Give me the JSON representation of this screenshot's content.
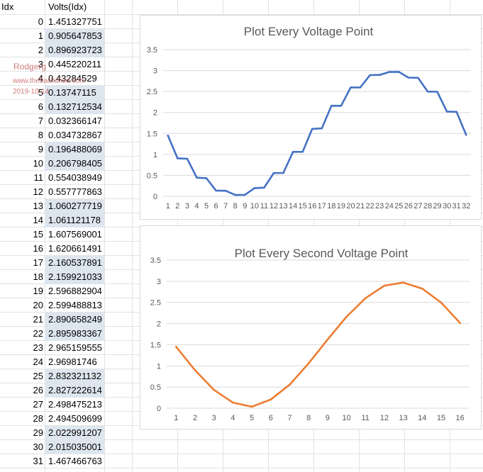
{
  "sheet": {
    "headers": [
      "Idx",
      "Volts(Idx)"
    ],
    "rows": [
      {
        "idx": "0",
        "val": "1.451327751",
        "sel": false
      },
      {
        "idx": "1",
        "val": "0.905647853",
        "sel": true
      },
      {
        "idx": "2",
        "val": "0.896923723",
        "sel": true
      },
      {
        "idx": "3",
        "val": "0.445220211",
        "sel": false
      },
      {
        "idx": "4",
        "val": "0.43284529",
        "sel": false
      },
      {
        "idx": "5",
        "val": "0.13747115",
        "sel": true
      },
      {
        "idx": "6",
        "val": "0.132712534",
        "sel": true
      },
      {
        "idx": "7",
        "val": "0.032366147",
        "sel": false
      },
      {
        "idx": "8",
        "val": "0.034732867",
        "sel": false
      },
      {
        "idx": "9",
        "val": "0.196488069",
        "sel": true
      },
      {
        "idx": "10",
        "val": "0.206798405",
        "sel": true
      },
      {
        "idx": "11",
        "val": "0.554038949",
        "sel": false
      },
      {
        "idx": "12",
        "val": "0.557777863",
        "sel": false
      },
      {
        "idx": "13",
        "val": "1.060277719",
        "sel": true
      },
      {
        "idx": "14",
        "val": "1.061121178",
        "sel": true
      },
      {
        "idx": "15",
        "val": "1.607569001",
        "sel": false
      },
      {
        "idx": "16",
        "val": "1.620661491",
        "sel": false
      },
      {
        "idx": "17",
        "val": "2.160537891",
        "sel": true
      },
      {
        "idx": "18",
        "val": "2.159921033",
        "sel": true
      },
      {
        "idx": "19",
        "val": "2.596882904",
        "sel": false
      },
      {
        "idx": "20",
        "val": "2.599488813",
        "sel": false
      },
      {
        "idx": "21",
        "val": "2.890658249",
        "sel": true
      },
      {
        "idx": "22",
        "val": "2.895983367",
        "sel": true
      },
      {
        "idx": "23",
        "val": "2.965159555",
        "sel": false
      },
      {
        "idx": "24",
        "val": "2.96981746",
        "sel": false
      },
      {
        "idx": "25",
        "val": "2.832321132",
        "sel": true
      },
      {
        "idx": "26",
        "val": "2.827222614",
        "sel": true
      },
      {
        "idx": "27",
        "val": "2.498475213",
        "sel": false
      },
      {
        "idx": "28",
        "val": "2.494509699",
        "sel": false
      },
      {
        "idx": "29",
        "val": "2.022991207",
        "sel": true
      },
      {
        "idx": "30",
        "val": "2.015035001",
        "sel": true
      },
      {
        "idx": "31",
        "val": "1.467466763",
        "sel": false
      }
    ]
  },
  "watermark": {
    "name": "Rodgerg",
    "site": "www.thebackshed.com",
    "date": "2019-10-14"
  },
  "colors": {
    "series1": "#4472c4",
    "series2": "#ed7d31",
    "gridline": "#d9d9d9",
    "selection": "#dde6ef"
  },
  "chart_data": [
    {
      "type": "line",
      "title": "Plot Every Voltage Point",
      "x": [
        1,
        2,
        3,
        4,
        5,
        6,
        7,
        8,
        9,
        10,
        11,
        12,
        13,
        14,
        15,
        16,
        17,
        18,
        19,
        20,
        21,
        22,
        23,
        24,
        25,
        26,
        27,
        28,
        29,
        30,
        31,
        32
      ],
      "series": [
        {
          "values": [
            1.451327751,
            0.905647853,
            0.896923723,
            0.445220211,
            0.43284529,
            0.13747115,
            0.132712534,
            0.032366147,
            0.034732867,
            0.196488069,
            0.206798405,
            0.554038949,
            0.557777863,
            1.060277719,
            1.061121178,
            1.607569001,
            1.620661491,
            2.160537891,
            2.159921033,
            2.596882904,
            2.599488813,
            2.890658249,
            2.895983367,
            2.965159555,
            2.96981746,
            2.832321132,
            2.827222614,
            2.498475213,
            2.494509699,
            2.022991207,
            2.015035001,
            1.467466763
          ]
        }
      ],
      "yticks": [
        "0",
        "0.5",
        "1",
        "1.5",
        "2",
        "2.5",
        "3",
        "3.5"
      ],
      "ylim": [
        0,
        3.5
      ],
      "grid": true,
      "legend": "none"
    },
    {
      "type": "line",
      "title": "Plot Every Second Voltage Point",
      "x": [
        1,
        2,
        3,
        4,
        5,
        6,
        7,
        8,
        9,
        10,
        11,
        12,
        13,
        14,
        15,
        16
      ],
      "series": [
        {
          "values": [
            1.451327751,
            0.896923723,
            0.43284529,
            0.132712534,
            0.034732867,
            0.206798405,
            0.557777863,
            1.061121178,
            1.620661491,
            2.159921033,
            2.599488813,
            2.895983367,
            2.96981746,
            2.827222614,
            2.494509699,
            2.015035001
          ]
        }
      ],
      "yticks": [
        "0",
        "0.5",
        "1",
        "1.5",
        "2",
        "2.5",
        "3",
        "3.5"
      ],
      "ylim": [
        0,
        3.5
      ],
      "grid": true,
      "legend": "none"
    }
  ]
}
